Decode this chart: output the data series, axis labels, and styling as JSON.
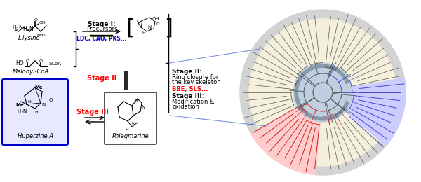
{
  "bg_color": "#ffffff",
  "title": "",
  "left_panel": {
    "lysine_label": "L-lysine",
    "malonyl_label": "Malonyl-CoA",
    "huperzine_label": "Huperzine A",
    "phlegmarine_label": "Phlegmarine",
    "stage1_label": "Stage I:\nPrecursors",
    "stage1_enzymes": "LDC, CAO, PKS...",
    "stage2_label": "Stage II",
    "stage2_desc": "Stage II:\nRing closure for\nthe key skeleton",
    "stage2_enzymes": "BBE, SLS...",
    "stage3_label": "Stage III",
    "stage3_desc": "Stage III:\nModification &\noxidation",
    "stage1_color": "#000000",
    "stage2_color": "#ff0000",
    "stage3_color": "#ff0000",
    "enzyme_color": "#0000cc",
    "enzyme2_color": "#ff0000"
  },
  "tree_colors": {
    "background_outer": "#d3d3d3",
    "background_inner": "#f5f0dc",
    "center_circle": "#c0cfe0",
    "blue_clade": "#4444cc",
    "blue_clade_bg": "#ccccff",
    "red_clade": "#cc2222",
    "red_clade_bg": "#ffcccc",
    "branches": "#555555"
  }
}
